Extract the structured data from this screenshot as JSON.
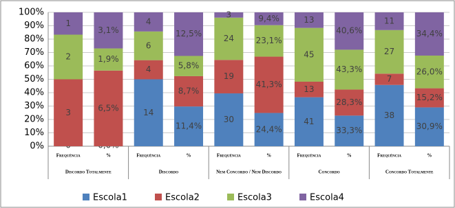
{
  "chart_data": {
    "type": "stacked-percent-bar",
    "categories": [
      "Frequência",
      "%",
      "Frequência",
      "%",
      "Frequência",
      "%",
      "Frequência",
      "%",
      "Frequência",
      "%"
    ],
    "groups": [
      "Discordo Totalmente",
      "Discordo",
      "Nem Concordo / Nem Discordo",
      "Concordo",
      "Concordo Totalmente"
    ],
    "series": [
      {
        "name": "Escola1",
        "color": "#4f81bd",
        "values": [
          0,
          0.0,
          14,
          11.4,
          30,
          24.4,
          41,
          33.3,
          38,
          30.9
        ],
        "value_labels": [
          "0",
          "0,0%",
          "14",
          "11,4%",
          "30",
          "24,4%",
          "41",
          "33,3%",
          "38",
          "30,9%"
        ]
      },
      {
        "name": "Escola2",
        "color": "#c0504d",
        "values": [
          3,
          6.5,
          4,
          8.7,
          19,
          41.3,
          13,
          28.3,
          7,
          15.2
        ],
        "value_labels": [
          "3",
          "6,5%",
          "4",
          "8,7%",
          "19",
          "41,3%",
          "13",
          "28,3%",
          "7",
          "15,2%"
        ]
      },
      {
        "name": "Escola3",
        "color": "#9bbb59",
        "values": [
          2,
          1.9,
          6,
          5.8,
          24,
          23.1,
          45,
          43.3,
          27,
          26.0
        ],
        "value_labels": [
          "2",
          "1,9%",
          "6",
          "5,8%",
          "24",
          "23,1%",
          "45",
          "43,3%",
          "27",
          "26,0%"
        ]
      },
      {
        "name": "Escola4",
        "color": "#8064a2",
        "values": [
          1,
          3.1,
          4,
          12.5,
          3,
          9.4,
          13,
          40.6,
          11,
          34.4
        ],
        "value_labels": [
          "1",
          "3,1%",
          "4",
          "12,5%",
          "3",
          "9,4%",
          "13",
          "40,6%",
          "11",
          "34,4%"
        ]
      }
    ],
    "ylim": [
      0,
      100
    ],
    "yticks": [
      {
        "value": 0,
        "label": "0%"
      },
      {
        "value": 10,
        "label": "10%"
      },
      {
        "value": 20,
        "label": "20%"
      },
      {
        "value": 30,
        "label": "30%"
      },
      {
        "value": 40,
        "label": "40%"
      },
      {
        "value": 50,
        "label": "50%"
      },
      {
        "value": 60,
        "label": "60%"
      },
      {
        "value": 70,
        "label": "70%"
      },
      {
        "value": 80,
        "label": "80%"
      },
      {
        "value": 90,
        "label": "90%"
      },
      {
        "value": 100,
        "label": "100%"
      }
    ],
    "grid": true,
    "legend": "bottom"
  }
}
